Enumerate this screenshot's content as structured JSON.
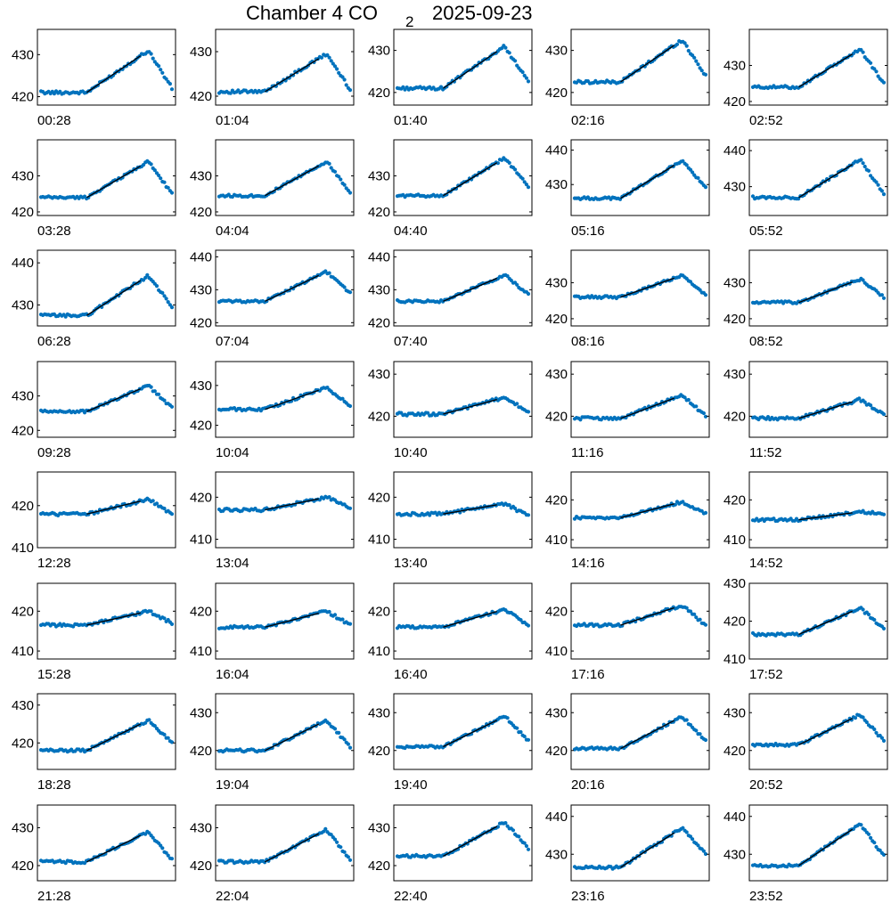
{
  "title": {
    "main": "Chamber 4 CO",
    "sub": "2",
    "date": "2025-09-23"
  },
  "colors": {
    "points": "#0072bd",
    "fit": "#000000",
    "axes": "#000000"
  },
  "chart_data": [
    {
      "type": "scatter",
      "label": "00:28",
      "ticks": [
        420,
        430
      ],
      "ylim": [
        418,
        436
      ],
      "base": 421.0,
      "peak": 431.0,
      "tail": 422.0,
      "fit_start": 0.35
    },
    {
      "type": "scatter",
      "label": "01:04",
      "ticks": [
        420,
        430
      ],
      "ylim": [
        418,
        435
      ],
      "base": 421.0,
      "peak": 429.5,
      "tail": 421.5,
      "fit_start": 0.35
    },
    {
      "type": "scatter",
      "label": "01:40",
      "ticks": [
        420,
        430
      ],
      "ylim": [
        417,
        435
      ],
      "base": 421.0,
      "peak": 431.0,
      "tail": 422.5,
      "fit_start": 0.35
    },
    {
      "type": "scatter",
      "label": "02:16",
      "ticks": [
        420,
        430
      ],
      "ylim": [
        417,
        435
      ],
      "base": 422.5,
      "peak": 432.5,
      "tail": 424.0,
      "fit_start": 0.35
    },
    {
      "type": "scatter",
      "label": "02:52",
      "ticks": [
        420,
        430
      ],
      "ylim": [
        419,
        440
      ],
      "base": 424.0,
      "peak": 434.5,
      "tail": 425.0,
      "fit_start": 0.35
    },
    {
      "type": "scatter",
      "label": "03:28",
      "ticks": [
        420,
        430
      ],
      "ylim": [
        419,
        440
      ],
      "base": 424.0,
      "peak": 434.0,
      "tail": 425.0,
      "fit_start": 0.35
    },
    {
      "type": "scatter",
      "label": "04:04",
      "ticks": [
        420,
        430
      ],
      "ylim": [
        419,
        440
      ],
      "base": 424.5,
      "peak": 434.0,
      "tail": 425.5,
      "fit_start": 0.35
    },
    {
      "type": "scatter",
      "label": "04:40",
      "ticks": [
        420,
        430
      ],
      "ylim": [
        419,
        440
      ],
      "base": 424.5,
      "peak": 435.0,
      "tail": 427.0,
      "fit_start": 0.35
    },
    {
      "type": "scatter",
      "label": "05:16",
      "ticks": [
        430,
        440
      ],
      "ylim": [
        421,
        443
      ],
      "base": 426.0,
      "peak": 437.0,
      "tail": 429.0,
      "fit_start": 0.35
    },
    {
      "type": "scatter",
      "label": "05:52",
      "ticks": [
        430,
        440
      ],
      "ylim": [
        422,
        443
      ],
      "base": 427.0,
      "peak": 437.5,
      "tail": 428.0,
      "fit_start": 0.35
    },
    {
      "type": "scatter",
      "label": "06:28",
      "ticks": [
        430,
        440
      ],
      "ylim": [
        425,
        443
      ],
      "base": 427.5,
      "peak": 437.0,
      "tail": 429.5,
      "fit_start": 0.35
    },
    {
      "type": "scatter",
      "label": "07:04",
      "ticks": [
        420,
        430,
        440
      ],
      "ylim": [
        419,
        442
      ],
      "base": 426.5,
      "peak": 435.5,
      "tail": 429.0,
      "fit_start": 0.35
    },
    {
      "type": "scatter",
      "label": "07:40",
      "ticks": [
        420,
        430,
        440
      ],
      "ylim": [
        419,
        442
      ],
      "base": 426.5,
      "peak": 434.5,
      "tail": 428.5,
      "fit_start": 0.35
    },
    {
      "type": "scatter",
      "label": "08:16",
      "ticks": [
        420,
        430
      ],
      "ylim": [
        418,
        439
      ],
      "base": 426.0,
      "peak": 432.0,
      "tail": 426.5,
      "fit_start": 0.35
    },
    {
      "type": "scatter",
      "label": "08:52",
      "ticks": [
        420,
        430
      ],
      "ylim": [
        418,
        439
      ],
      "base": 424.5,
      "peak": 431.0,
      "tail": 426.0,
      "fit_start": 0.35
    },
    {
      "type": "scatter",
      "label": "09:28",
      "ticks": [
        420,
        430
      ],
      "ylim": [
        418,
        440
      ],
      "base": 425.5,
      "peak": 433.0,
      "tail": 426.5,
      "fit_start": 0.35
    },
    {
      "type": "scatter",
      "label": "10:04",
      "ticks": [
        420,
        430
      ],
      "ylim": [
        417,
        436
      ],
      "base": 424.0,
      "peak": 429.5,
      "tail": 425.0,
      "fit_start": 0.35
    },
    {
      "type": "scatter",
      "label": "10:40",
      "ticks": [
        420,
        430
      ],
      "ylim": [
        415,
        433
      ],
      "base": 420.5,
      "peak": 424.5,
      "tail": 421.0,
      "fit_start": 0.35
    },
    {
      "type": "scatter",
      "label": "11:16",
      "ticks": [
        420,
        430
      ],
      "ylim": [
        415,
        433
      ],
      "base": 419.5,
      "peak": 425.0,
      "tail": 420.0,
      "fit_start": 0.35
    },
    {
      "type": "scatter",
      "label": "11:52",
      "ticks": [
        420,
        430
      ],
      "ylim": [
        415,
        433
      ],
      "base": 419.5,
      "peak": 424.0,
      "tail": 420.5,
      "fit_start": 0.35
    },
    {
      "type": "scatter",
      "label": "12:28",
      "ticks": [
        410,
        420
      ],
      "ylim": [
        410,
        428
      ],
      "base": 418.0,
      "peak": 421.5,
      "tail": 418.0,
      "fit_start": 0.35
    },
    {
      "type": "scatter",
      "label": "13:04",
      "ticks": [
        410,
        420
      ],
      "ylim": [
        408,
        426
      ],
      "base": 417.0,
      "peak": 420.0,
      "tail": 417.5,
      "fit_start": 0.35
    },
    {
      "type": "scatter",
      "label": "13:40",
      "ticks": [
        410,
        420
      ],
      "ylim": [
        408,
        426
      ],
      "base": 416.0,
      "peak": 418.5,
      "tail": 415.5,
      "fit_start": 0.35
    },
    {
      "type": "scatter",
      "label": "14:16",
      "ticks": [
        410,
        420
      ],
      "ylim": [
        408,
        427
      ],
      "base": 415.5,
      "peak": 419.5,
      "tail": 416.5,
      "fit_start": 0.35
    },
    {
      "type": "scatter",
      "label": "14:52",
      "ticks": [
        410,
        420
      ],
      "ylim": [
        408,
        427
      ],
      "base": 415.0,
      "peak": 417.0,
      "tail": 416.5,
      "fit_start": 0.35
    },
    {
      "type": "scatter",
      "label": "15:28",
      "ticks": [
        410,
        420
      ],
      "ylim": [
        408,
        427
      ],
      "base": 416.5,
      "peak": 420.0,
      "tail": 417.0,
      "fit_start": 0.35
    },
    {
      "type": "scatter",
      "label": "16:04",
      "ticks": [
        410,
        420
      ],
      "ylim": [
        408,
        427
      ],
      "base": 416.0,
      "peak": 420.0,
      "tail": 416.5,
      "fit_start": 0.35
    },
    {
      "type": "scatter",
      "label": "16:40",
      "ticks": [
        410,
        420
      ],
      "ylim": [
        408,
        427
      ],
      "base": 416.0,
      "peak": 420.5,
      "tail": 416.5,
      "fit_start": 0.35
    },
    {
      "type": "scatter",
      "label": "17:16",
      "ticks": [
        410,
        420
      ],
      "ylim": [
        408,
        427
      ],
      "base": 416.5,
      "peak": 421.5,
      "tail": 416.5,
      "fit_start": 0.35
    },
    {
      "type": "scatter",
      "label": "17:52",
      "ticks": [
        410,
        420,
        430
      ],
      "ylim": [
        410,
        430
      ],
      "base": 416.5,
      "peak": 423.5,
      "tail": 418.0,
      "fit_start": 0.35
    },
    {
      "type": "scatter",
      "label": "18:28",
      "ticks": [
        420,
        430
      ],
      "ylim": [
        413,
        433
      ],
      "base": 418.0,
      "peak": 426.0,
      "tail": 420.0,
      "fit_start": 0.35
    },
    {
      "type": "scatter",
      "label": "19:04",
      "ticks": [
        420,
        430
      ],
      "ylim": [
        415,
        435
      ],
      "base": 420.0,
      "peak": 428.0,
      "tail": 421.0,
      "fit_start": 0.35
    },
    {
      "type": "scatter",
      "label": "19:40",
      "ticks": [
        420,
        430
      ],
      "ylim": [
        415,
        435
      ],
      "base": 421.0,
      "peak": 429.0,
      "tail": 422.5,
      "fit_start": 0.35
    },
    {
      "type": "scatter",
      "label": "20:16",
      "ticks": [
        420,
        430
      ],
      "ylim": [
        415,
        435
      ],
      "base": 420.5,
      "peak": 429.0,
      "tail": 422.5,
      "fit_start": 0.35
    },
    {
      "type": "scatter",
      "label": "20:52",
      "ticks": [
        420,
        430
      ],
      "ylim": [
        415,
        435
      ],
      "base": 421.5,
      "peak": 429.5,
      "tail": 422.5,
      "fit_start": 0.35
    },
    {
      "type": "scatter",
      "label": "21:28",
      "ticks": [
        420,
        430
      ],
      "ylim": [
        416,
        436
      ],
      "base": 421.0,
      "peak": 429.0,
      "tail": 421.5,
      "fit_start": 0.35
    },
    {
      "type": "scatter",
      "label": "22:04",
      "ticks": [
        420,
        430
      ],
      "ylim": [
        416,
        436
      ],
      "base": 421.0,
      "peak": 429.5,
      "tail": 421.5,
      "fit_start": 0.35
    },
    {
      "type": "scatter",
      "label": "22:40",
      "ticks": [
        420,
        430
      ],
      "ylim": [
        416,
        436
      ],
      "base": 422.5,
      "peak": 431.5,
      "tail": 424.5,
      "fit_start": 0.35
    },
    {
      "type": "scatter",
      "label": "23:16",
      "ticks": [
        430,
        440
      ],
      "ylim": [
        423,
        443
      ],
      "base": 426.5,
      "peak": 437.0,
      "tail": 430.0,
      "fit_start": 0.35
    },
    {
      "type": "scatter",
      "label": "23:52",
      "ticks": [
        430,
        440
      ],
      "ylim": [
        423,
        443
      ],
      "base": 427.0,
      "peak": 438.0,
      "tail": 429.5,
      "fit_start": 0.35
    }
  ]
}
